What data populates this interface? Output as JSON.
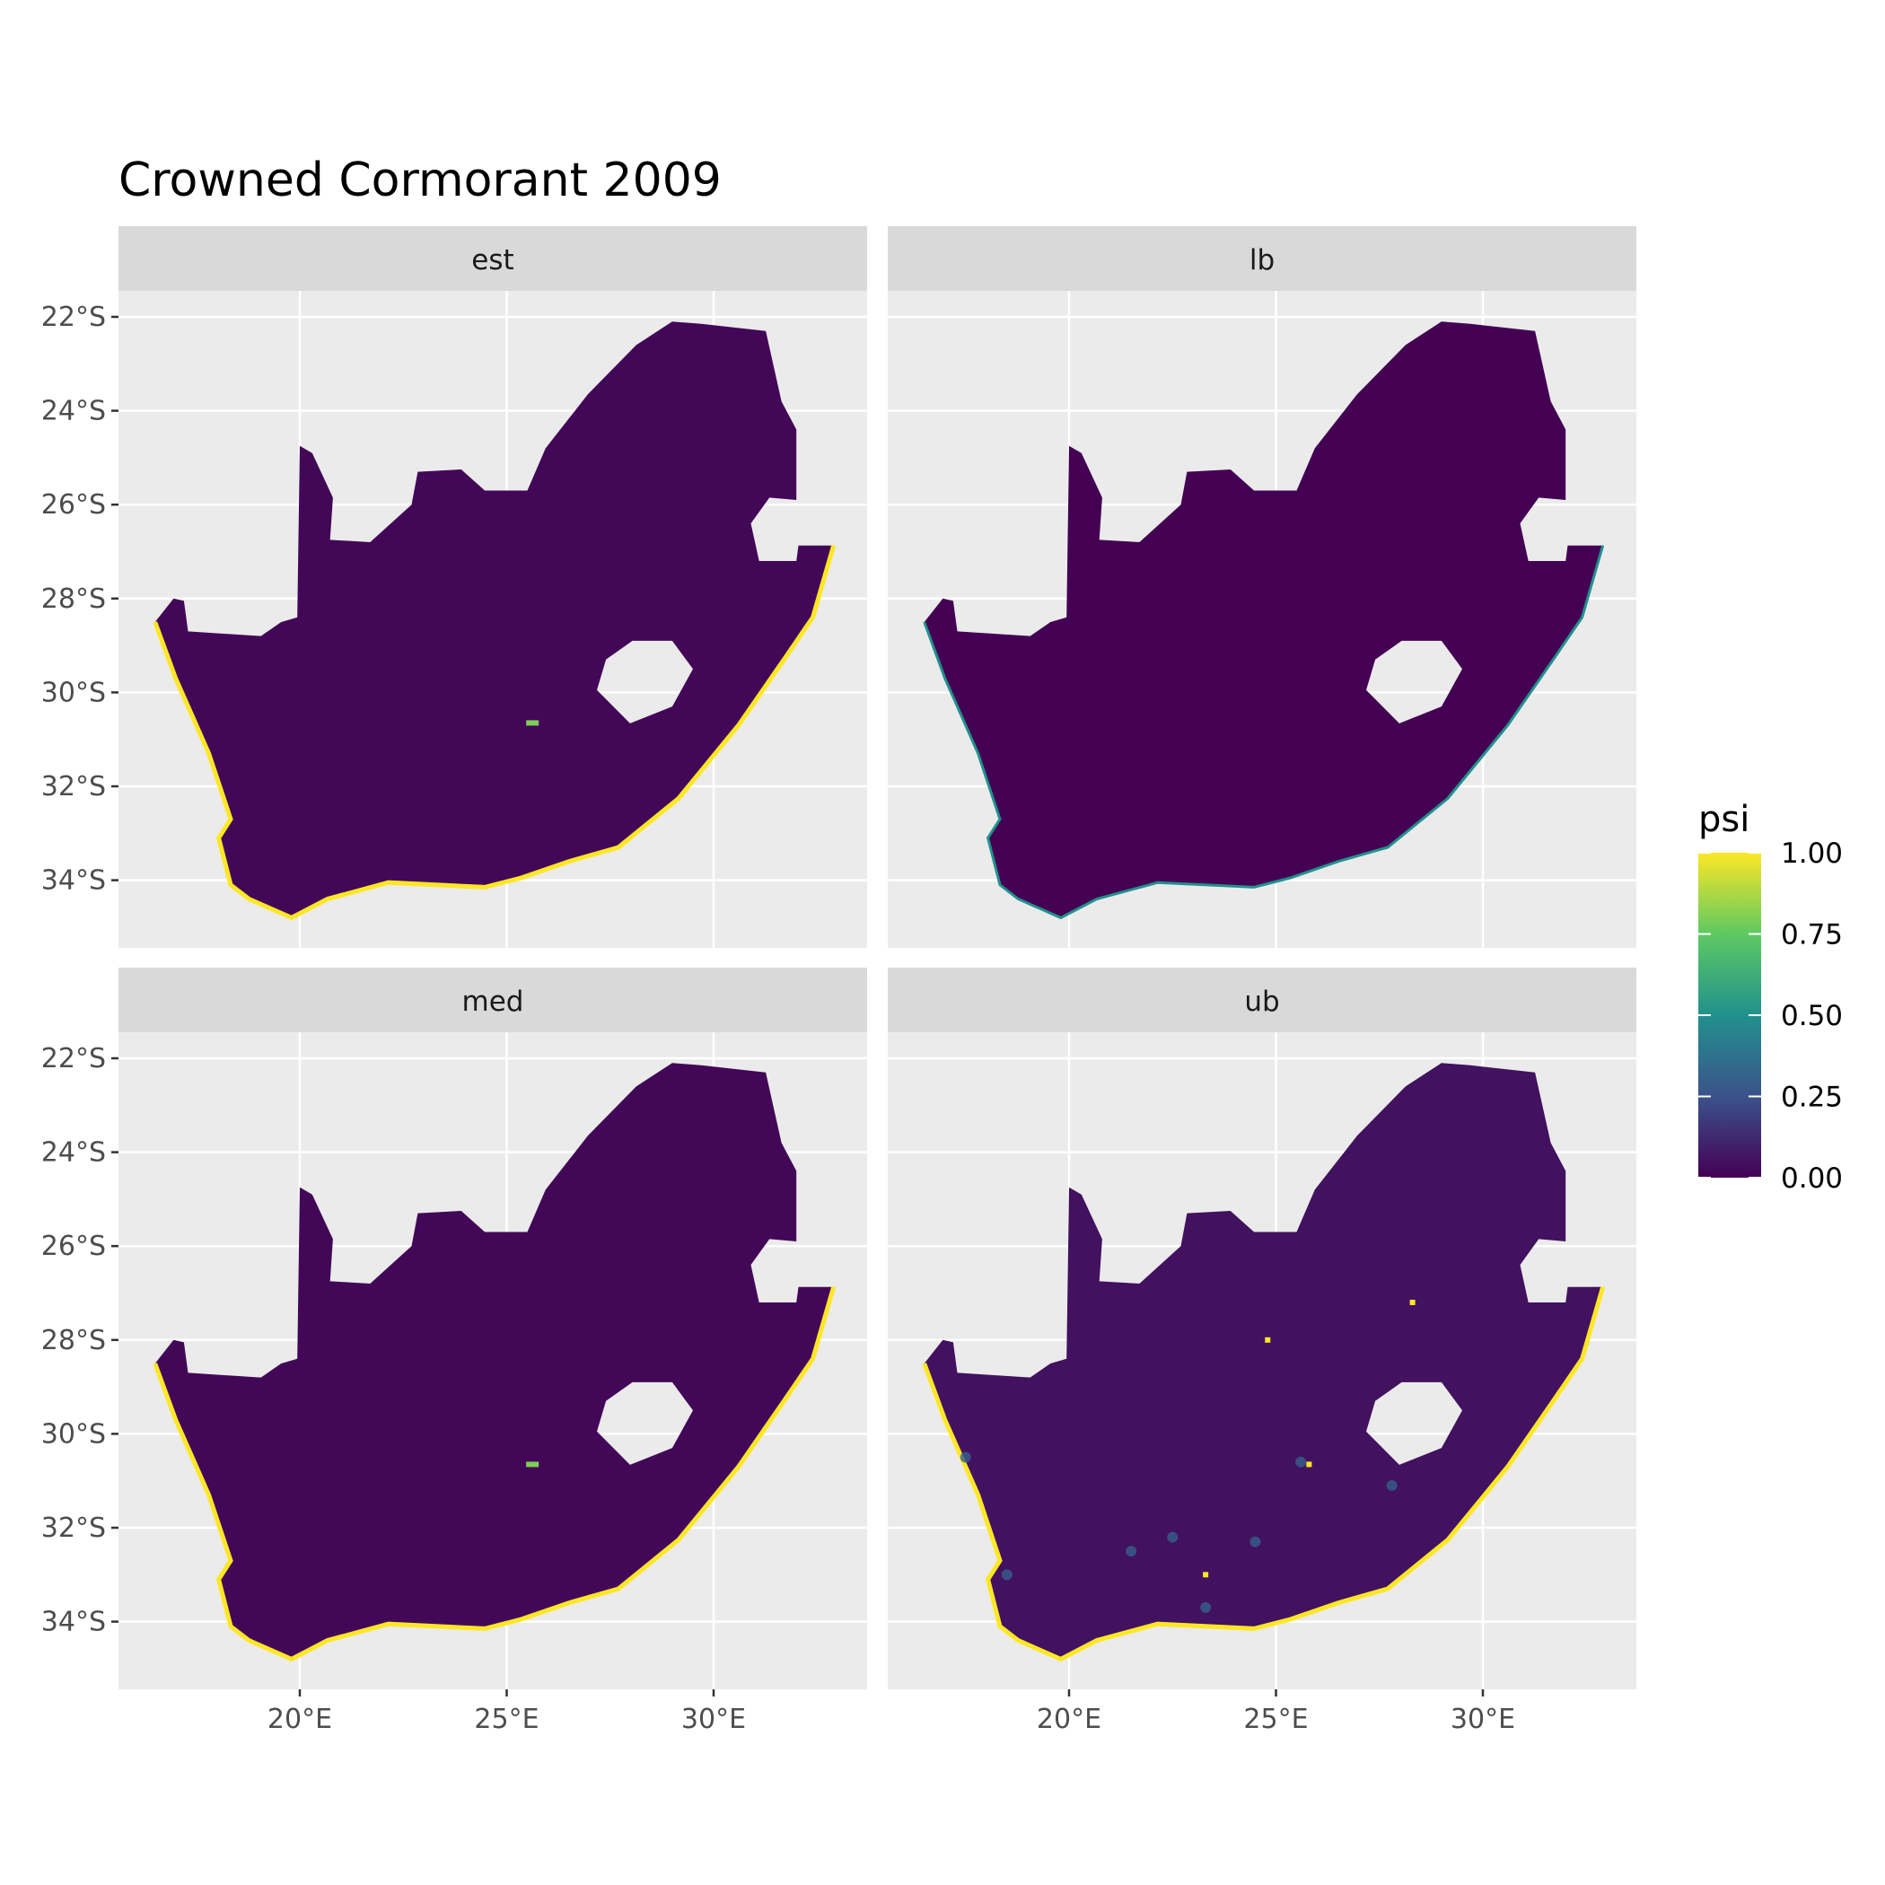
{
  "chart_data": {
    "type": "heatmap",
    "title": "Crowned Cormorant 2009",
    "panels": [
      {
        "label": "est",
        "coast_value": 1.0,
        "interior_value": 0.02
      },
      {
        "label": "lb",
        "coast_value": 0.5,
        "interior_value": 0.0
      },
      {
        "label": "med",
        "coast_value": 1.0,
        "interior_value": 0.02
      },
      {
        "label": "ub",
        "coast_value": 1.0,
        "interior_value": 0.05
      }
    ],
    "x_ticks": [
      {
        "value": 20,
        "label": "20°E"
      },
      {
        "value": 25,
        "label": "25°E"
      },
      {
        "value": 30,
        "label": "30°E"
      }
    ],
    "y_ticks": [
      {
        "value": -22,
        "label": "22°S"
      },
      {
        "value": -24,
        "label": "24°S"
      },
      {
        "value": -26,
        "label": "26°S"
      },
      {
        "value": -28,
        "label": "28°S"
      },
      {
        "value": -30,
        "label": "30°S"
      },
      {
        "value": -32,
        "label": "32°S"
      },
      {
        "value": -34,
        "label": "34°S"
      }
    ],
    "xlim": [
      15.6,
      33.7
    ],
    "ylim": [
      -35.5,
      -21.5
    ],
    "legend": {
      "title": "psi",
      "placement": "right",
      "range": [
        0,
        1
      ],
      "ticks": [
        {
          "value": 1.0,
          "label": "1.00"
        },
        {
          "value": 0.75,
          "label": "0.75"
        },
        {
          "value": 0.5,
          "label": "0.50"
        },
        {
          "value": 0.25,
          "label": "0.25"
        },
        {
          "value": 0.0,
          "label": "0.00"
        }
      ],
      "colormap": "viridis",
      "colors": [
        "#440154",
        "#3b528b",
        "#21918c",
        "#5ec962",
        "#fde725"
      ]
    },
    "colors": {
      "panel_background": "#EBEBEB",
      "strip_background": "#D9D9D9",
      "grid": "#FFFFFF"
    }
  }
}
